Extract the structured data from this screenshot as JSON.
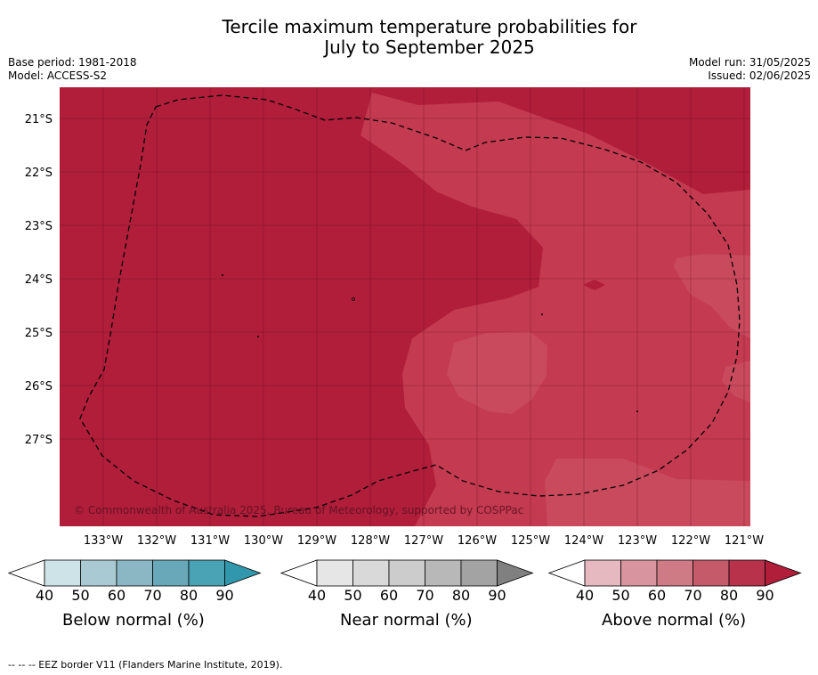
{
  "title": {
    "line1": "Tercile maximum temperature probabilities for",
    "line2": "July to September 2025"
  },
  "meta": {
    "base_period": "Base period: 1981-2018",
    "model": "Model: ACCESS-S2",
    "model_run": "Model run: 31/05/2025",
    "issued": "Issued: 02/06/2025"
  },
  "map": {
    "latitude_labels": [
      "21°S",
      "22°S",
      "23°S",
      "24°S",
      "25°S",
      "26°S",
      "27°S"
    ],
    "longitude_labels": [
      "133°W",
      "132°W",
      "131°W",
      "130°W",
      "129°W",
      "128°W",
      "127°W",
      "126°W",
      "125°W",
      "124°W",
      "123°W",
      "122°W",
      "121°W"
    ],
    "copyright": "© Commonwealth of Australia 2025, Bureau of Meteorology, supported by COSPPac",
    "colors": {
      "above_80": "#b01e3a",
      "above_70": "#c43a50",
      "above_60": "#c84a5c",
      "eez_line": "#000000"
    }
  },
  "colorbars": [
    {
      "id": "below",
      "title": "Below normal (%)",
      "ticks": [
        "40",
        "50",
        "60",
        "70",
        "80",
        "90"
      ],
      "colors": [
        "#ffffff",
        "#cde3e8",
        "#a9cad2",
        "#8ab7c3",
        "#68a8b9",
        "#4aa3b4",
        "#3197ad"
      ]
    },
    {
      "id": "near",
      "title": "Near normal (%)",
      "ticks": [
        "40",
        "50",
        "60",
        "70",
        "80",
        "90"
      ],
      "colors": [
        "#ffffff",
        "#e6e6e6",
        "#d9d9d9",
        "#cccccc",
        "#b8b8b8",
        "#a3a3a3",
        "#808080"
      ]
    },
    {
      "id": "above",
      "title": "Above normal (%)",
      "ticks": [
        "40",
        "50",
        "60",
        "70",
        "80",
        "90"
      ],
      "colors": [
        "#ffffff",
        "#e6b8bf",
        "#d8959f",
        "#cf7b85",
        "#c55b6a",
        "#b8324b",
        "#b01e3a"
      ]
    }
  ],
  "footnote": "--  --  -- EEZ border V11 (Flanders Marine Institute, 2019)."
}
